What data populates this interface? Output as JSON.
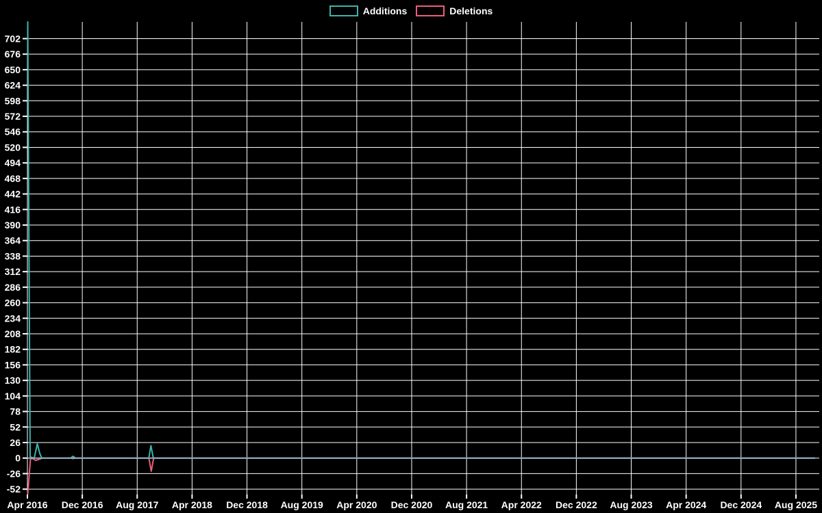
{
  "chart_data": {
    "type": "line",
    "title": "",
    "legend_position": "top-center",
    "background_color": "#000000",
    "text_color": "#ffffff",
    "grid_color": "#ffffff",
    "zero_axis_color": "#87aebe",
    "grid": true,
    "x_unit": "months since Apr 2016 (commit activity over time)",
    "xlim": [
      0,
      115.4
    ],
    "ylim": [
      -61,
      730
    ],
    "y_tick_step": 26,
    "y_ticks": [
      702,
      676,
      650,
      624,
      598,
      572,
      546,
      520,
      494,
      468,
      442,
      416,
      390,
      364,
      338,
      312,
      286,
      260,
      234,
      208,
      182,
      156,
      130,
      104,
      78,
      52,
      26,
      0,
      -26,
      -52
    ],
    "x_ticks": [
      {
        "m": 0,
        "label": "Apr 2016"
      },
      {
        "m": 8,
        "label": "Dec 2016"
      },
      {
        "m": 16,
        "label": "Aug 2017"
      },
      {
        "m": 24,
        "label": "Apr 2018"
      },
      {
        "m": 32,
        "label": "Dec 2018"
      },
      {
        "m": 40,
        "label": "Aug 2019"
      },
      {
        "m": 48,
        "label": "Apr 2020"
      },
      {
        "m": 56,
        "label": "Dec 2020"
      },
      {
        "m": 64,
        "label": "Aug 2021"
      },
      {
        "m": 72,
        "label": "Apr 2022"
      },
      {
        "m": 80,
        "label": "Dec 2022"
      },
      {
        "m": 88,
        "label": "Aug 2023"
      },
      {
        "m": 96,
        "label": "Apr 2024"
      },
      {
        "m": 104,
        "label": "Dec 2024"
      },
      {
        "m": 112,
        "label": "Aug 2025"
      }
    ],
    "legend": [
      {
        "label": "Additions",
        "color": "#3cb4ae"
      },
      {
        "label": "Deletions",
        "color": "#ee5c7d"
      }
    ],
    "series": [
      {
        "name": "Additions",
        "color": "#3cb4ae",
        "points": [
          [
            0.05,
            730
          ],
          [
            0.4,
            2
          ],
          [
            1.0,
            0
          ],
          [
            1.45,
            24
          ],
          [
            1.8,
            8
          ],
          [
            2.1,
            0
          ],
          [
            6.3,
            0
          ],
          [
            6.65,
            3
          ],
          [
            7.0,
            0
          ],
          [
            17.7,
            0
          ],
          [
            18.0,
            21
          ],
          [
            18.35,
            0
          ],
          [
            114.8,
            0
          ]
        ]
      },
      {
        "name": "Deletions",
        "color": "#ee5c7d",
        "points": [
          [
            0.05,
            -60
          ],
          [
            0.45,
            -1
          ],
          [
            0.85,
            -1
          ],
          [
            1.2,
            -4
          ],
          [
            1.7,
            -2
          ],
          [
            2.2,
            0
          ],
          [
            6.4,
            0
          ],
          [
            6.65,
            -1
          ],
          [
            6.95,
            0
          ],
          [
            17.7,
            0
          ],
          [
            18.05,
            -22
          ],
          [
            18.4,
            0
          ],
          [
            114.8,
            0
          ]
        ]
      }
    ]
  }
}
